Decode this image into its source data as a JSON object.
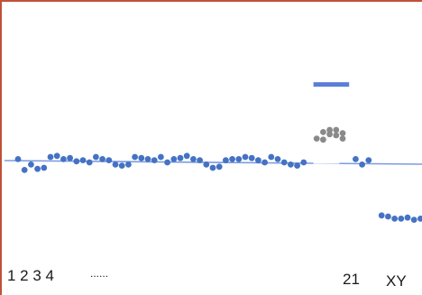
{
  "colors": {
    "frame": "#c0513a",
    "series": "#4472c4",
    "highlight": "#5b7fd6",
    "gray": "#8a8a8a",
    "line": "#7b9ce0"
  },
  "labels": {
    "chromosomes": "1  2  3  4",
    "dots": "......",
    "chr21": "21",
    "chrXY": "XY"
  },
  "chart_data": {
    "type": "scatter",
    "title": "",
    "xlabel": "",
    "ylabel": "",
    "grid": false,
    "baseline": 1.0,
    "series": [
      {
        "color": "series",
        "points": [
          [
            1,
            1.03
          ],
          [
            2,
            0.93
          ],
          [
            3,
            0.98
          ],
          [
            4,
            0.94
          ],
          [
            5,
            0.95
          ],
          [
            6,
            1.05
          ],
          [
            7,
            1.06
          ],
          [
            8,
            1.03
          ],
          [
            9,
            1.04
          ],
          [
            10,
            1.01
          ],
          [
            11,
            1.02
          ],
          [
            12,
            1.0
          ],
          [
            13,
            1.05
          ],
          [
            14,
            1.03
          ],
          [
            15,
            1.02
          ],
          [
            16,
            0.98
          ],
          [
            17,
            0.97
          ],
          [
            18,
            0.98
          ],
          [
            19,
            1.05
          ],
          [
            20,
            1.04
          ],
          [
            21,
            1.03
          ],
          [
            22,
            1.02
          ],
          [
            23,
            1.05
          ],
          [
            24,
            1.0
          ],
          [
            25,
            1.03
          ],
          [
            26,
            1.04
          ],
          [
            27,
            1.06
          ],
          [
            28,
            1.03
          ],
          [
            29,
            1.02
          ],
          [
            30,
            0.98
          ],
          [
            31,
            0.95
          ],
          [
            32,
            0.96
          ],
          [
            33,
            1.02
          ],
          [
            34,
            1.03
          ],
          [
            35,
            1.03
          ],
          [
            36,
            1.05
          ],
          [
            37,
            1.04
          ],
          [
            38,
            1.02
          ],
          [
            39,
            1.0
          ],
          [
            40,
            1.05
          ],
          [
            41,
            1.03
          ],
          [
            42,
            1.0
          ],
          [
            43,
            0.98
          ],
          [
            44,
            0.97
          ],
          [
            45,
            1.0
          ],
          [
            53,
            1.03
          ],
          [
            54,
            0.98
          ],
          [
            55,
            1.02
          ],
          [
            57,
            0.51
          ],
          [
            58,
            0.5
          ],
          [
            59,
            0.48
          ],
          [
            60,
            0.48
          ],
          [
            61,
            0.49
          ],
          [
            62,
            0.47
          ],
          [
            63,
            0.48
          ]
        ]
      },
      {
        "color": "gray",
        "points": [
          [
            47,
            1.22
          ],
          [
            48,
            1.28
          ],
          [
            49,
            1.3
          ],
          [
            50,
            1.25
          ],
          [
            51,
            1.27
          ],
          [
            48,
            1.21
          ],
          [
            49,
            1.26
          ],
          [
            50,
            1.3
          ],
          [
            51,
            1.22
          ]
        ]
      }
    ],
    "highlight_segment": {
      "x": [
        46.5,
        52
      ],
      "y": 1.72
    },
    "chr21_segment": {
      "x": [
        46.5,
        50.5
      ],
      "y": 1.0
    }
  }
}
